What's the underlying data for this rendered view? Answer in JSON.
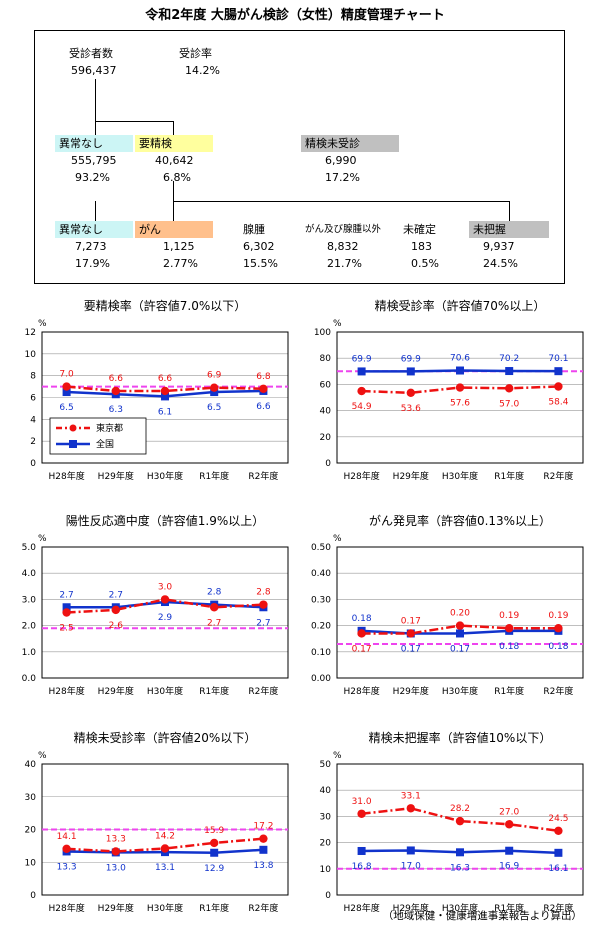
{
  "title": "令和2年度 大腸がん検診（女性）精度管理チャート",
  "flow": {
    "examinees": {
      "label": "受診者数",
      "value": "596,437"
    },
    "rate": {
      "label": "受診率",
      "value": "14.2%"
    },
    "normal": {
      "label": "異常なし",
      "count": "555,795",
      "pct": "93.2%"
    },
    "further": {
      "label": "要精検",
      "count": "40,642",
      "pct": "6.8%"
    },
    "unexamined": {
      "label": "精検未受診",
      "count": "6,990",
      "pct": "17.2%"
    },
    "outcomes": [
      {
        "label": "異常なし",
        "count": "7,273",
        "pct": "17.9%"
      },
      {
        "label": "がん",
        "count": "1,125",
        "pct": "2.77%"
      },
      {
        "label": "腺腫",
        "count": "6,302",
        "pct": "15.5%"
      },
      {
        "label": "がん及び腺腫以外",
        "count": "8,832",
        "pct": "21.7%"
      },
      {
        "label": "未確定",
        "count": "183",
        "pct": "0.5%"
      },
      {
        "label": "未把握",
        "count": "9,937",
        "pct": "24.5%"
      }
    ]
  },
  "colors": {
    "tokyo": "#ee1111",
    "national": "#1133cc",
    "threshold": "#ee44ee"
  },
  "footnote": "（地域保健・健康増進事業報告より算出）",
  "chart_data": [
    {
      "type": "line",
      "title": "要精検率（許容値7.0%以下）",
      "unit": "%",
      "categories": [
        "H28年度",
        "H29年度",
        "H30年度",
        "R1年度",
        "R2年度"
      ],
      "ylim": [
        0,
        12
      ],
      "yticks": [
        "0",
        "2",
        "4",
        "6",
        "8",
        "10",
        "12"
      ],
      "threshold": 7.0,
      "legend": {
        "show": true,
        "position": "bottom-left"
      },
      "series": [
        {
          "name": "東京都",
          "values": [
            7.0,
            6.6,
            6.6,
            6.9,
            6.8
          ],
          "labels": [
            "7.0",
            "6.6",
            "6.6",
            "6.9",
            "6.8"
          ]
        },
        {
          "name": "全国",
          "values": [
            6.5,
            6.3,
            6.1,
            6.5,
            6.6
          ],
          "labels": [
            "6.5",
            "6.3",
            "6.1",
            "6.5",
            "6.6"
          ]
        }
      ]
    },
    {
      "type": "line",
      "title": "精検受診率（許容値70%以上）",
      "unit": "%",
      "categories": [
        "H28年度",
        "H29年度",
        "H30年度",
        "R1年度",
        "R2年度"
      ],
      "ylim": [
        0,
        100
      ],
      "yticks": [
        "0",
        "20",
        "40",
        "60",
        "80",
        "100"
      ],
      "threshold": 70,
      "series": [
        {
          "name": "東京都",
          "values": [
            54.9,
            53.6,
            57.6,
            57.0,
            58.4
          ],
          "labels": [
            "54.9",
            "53.6",
            "57.6",
            "57.0",
            "58.4"
          ]
        },
        {
          "name": "全国",
          "values": [
            69.9,
            69.9,
            70.6,
            70.2,
            70.1
          ],
          "labels": [
            "69.9",
            "69.9",
            "70.6",
            "70.2",
            "70.1"
          ]
        }
      ]
    },
    {
      "type": "line",
      "title": "陽性反応適中度（許容値1.9%以上）",
      "unit": "%",
      "categories": [
        "H28年度",
        "H29年度",
        "H30年度",
        "R1年度",
        "R2年度"
      ],
      "ylim": [
        0,
        5
      ],
      "yticks": [
        "0.0",
        "1.0",
        "2.0",
        "3.0",
        "4.0",
        "5.0"
      ],
      "threshold": 1.9,
      "series": [
        {
          "name": "東京都",
          "values": [
            2.5,
            2.6,
            3.0,
            2.7,
            2.8
          ],
          "labels": [
            "2.5",
            "2.6",
            "3.0",
            "2.7",
            "2.8"
          ]
        },
        {
          "name": "全国",
          "values": [
            2.7,
            2.7,
            2.9,
            2.8,
            2.7
          ],
          "labels": [
            "2.7",
            "2.7",
            "2.9",
            "2.8",
            "2.7"
          ]
        }
      ]
    },
    {
      "type": "line",
      "title": "がん発見率（許容値0.13%以上）",
      "unit": "%",
      "categories": [
        "H28年度",
        "H29年度",
        "H30年度",
        "R1年度",
        "R2年度"
      ],
      "ylim": [
        0,
        0.5
      ],
      "yticks": [
        "0.00",
        "0.10",
        "0.20",
        "0.30",
        "0.40",
        "0.50"
      ],
      "threshold": 0.13,
      "series": [
        {
          "name": "東京都",
          "values": [
            0.17,
            0.17,
            0.2,
            0.19,
            0.19
          ],
          "labels": [
            "0.17",
            "0.17",
            "0.20",
            "0.19",
            "0.19"
          ]
        },
        {
          "name": "全国",
          "values": [
            0.18,
            0.17,
            0.17,
            0.18,
            0.18
          ],
          "labels": [
            "0.18",
            "0.17",
            "0.17",
            "0.18",
            "0.18"
          ]
        }
      ]
    },
    {
      "type": "line",
      "title": "精検未受診率（許容値20%以下）",
      "unit": "%",
      "categories": [
        "H28年度",
        "H29年度",
        "H30年度",
        "R1年度",
        "R2年度"
      ],
      "ylim": [
        0,
        40
      ],
      "yticks": [
        "0",
        "10",
        "20",
        "30",
        "40"
      ],
      "threshold": 20,
      "series": [
        {
          "name": "東京都",
          "values": [
            14.1,
            13.3,
            14.2,
            15.9,
            17.2
          ],
          "labels": [
            "14.1",
            "13.3",
            "14.2",
            "15.9",
            "17.2"
          ]
        },
        {
          "name": "全国",
          "values": [
            13.3,
            13.0,
            13.1,
            12.9,
            13.8
          ],
          "labels": [
            "13.3",
            "13.0",
            "13.1",
            "12.9",
            "13.8"
          ]
        }
      ]
    },
    {
      "type": "line",
      "title": "精検未把握率（許容値10%以下）",
      "unit": "%",
      "categories": [
        "H28年度",
        "H29年度",
        "H30年度",
        "R1年度",
        "R2年度"
      ],
      "ylim": [
        0,
        50
      ],
      "yticks": [
        "0",
        "10",
        "20",
        "30",
        "40",
        "50"
      ],
      "threshold": 10,
      "series": [
        {
          "name": "東京都",
          "values": [
            31.0,
            33.1,
            28.2,
            27.0,
            24.5
          ],
          "labels": [
            "31.0",
            "33.1",
            "28.2",
            "27.0",
            "24.5"
          ]
        },
        {
          "name": "全国",
          "values": [
            16.8,
            17.0,
            16.3,
            16.9,
            16.1
          ],
          "labels": [
            "16.8",
            "17.0",
            "16.3",
            "16.9",
            "16.1"
          ]
        }
      ]
    }
  ]
}
